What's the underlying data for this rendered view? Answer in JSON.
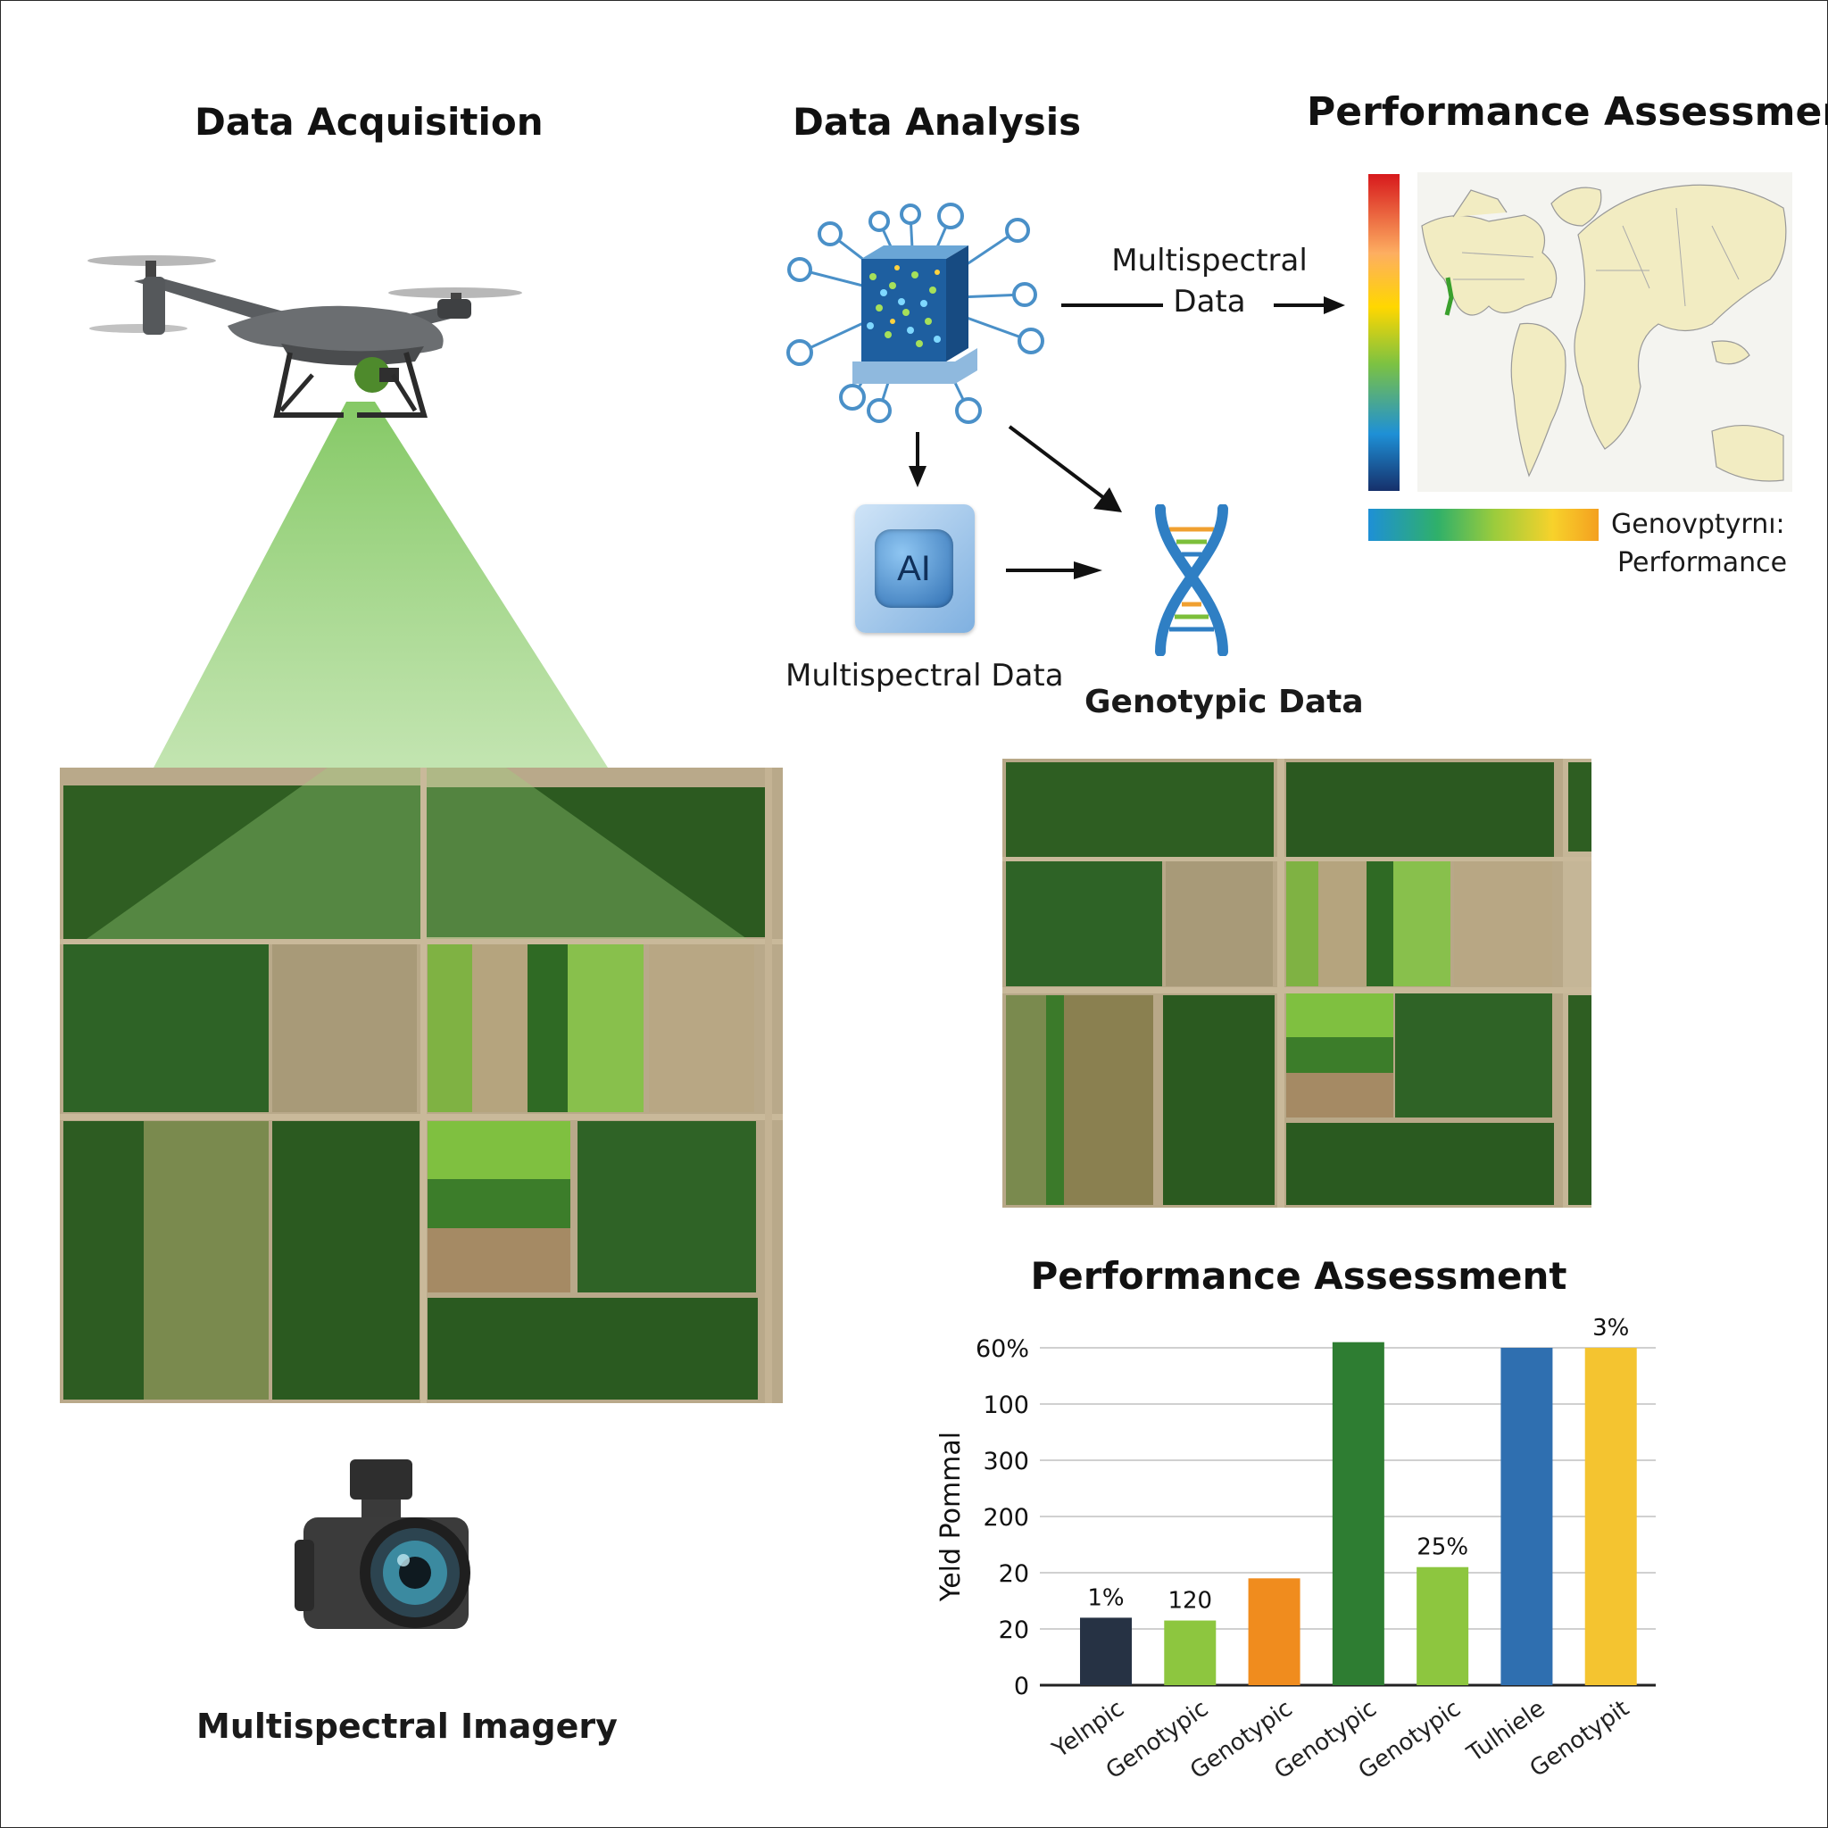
{
  "sections": {
    "acquisition_title": "Data Acquisition",
    "analysis_title": "Data Analysis",
    "assessment_title": "Performance Assessment"
  },
  "analysis": {
    "arrow_label_line1": "Multispectral",
    "arrow_label_line2": "Data",
    "ai_box_text": "AI",
    "ai_caption": "Multispectral Data",
    "dna_caption": "Genotypic Data"
  },
  "assessment_map": {
    "legend_label_line1": "Genovptyrnı:",
    "legend_label_line2": "Performance",
    "colorscale": [
      "#d7191c",
      "#fdae61",
      "#ffd700",
      "#7cc242",
      "#1a9641",
      "#1e90d6",
      "#16306b"
    ]
  },
  "acquisition": {
    "camera_caption": "Multispectral Imagery",
    "beam_color": "#8fcf6b"
  },
  "bar_chart": {
    "title": "Performance Assessment"
  },
  "chart_data": {
    "type": "bar",
    "title": "Performance Assessment",
    "ylabel": "Yeld Pommal",
    "y_tick_labels": [
      "0",
      "20",
      "20",
      "200",
      "300",
      "100",
      "60%"
    ],
    "categories": [
      "Yelnpic",
      "Genotypic",
      "Genotypic",
      "Genotypic",
      "Genotypic",
      "Tulhiele",
      "Genotypit"
    ],
    "values": [
      1.2,
      1.15,
      1.9,
      6.1,
      2.1,
      6.0,
      6.0
    ],
    "ylim": [
      0,
      6.0
    ],
    "data_labels": [
      "1%",
      "120",
      "",
      "",
      "25%",
      "",
      "3%"
    ],
    "colors": [
      "#263244",
      "#8dc63f",
      "#f08c1e",
      "#2e7d32",
      "#8dc63f",
      "#2f6fb0",
      "#f4c430"
    ],
    "grid": false,
    "legend": "none"
  }
}
